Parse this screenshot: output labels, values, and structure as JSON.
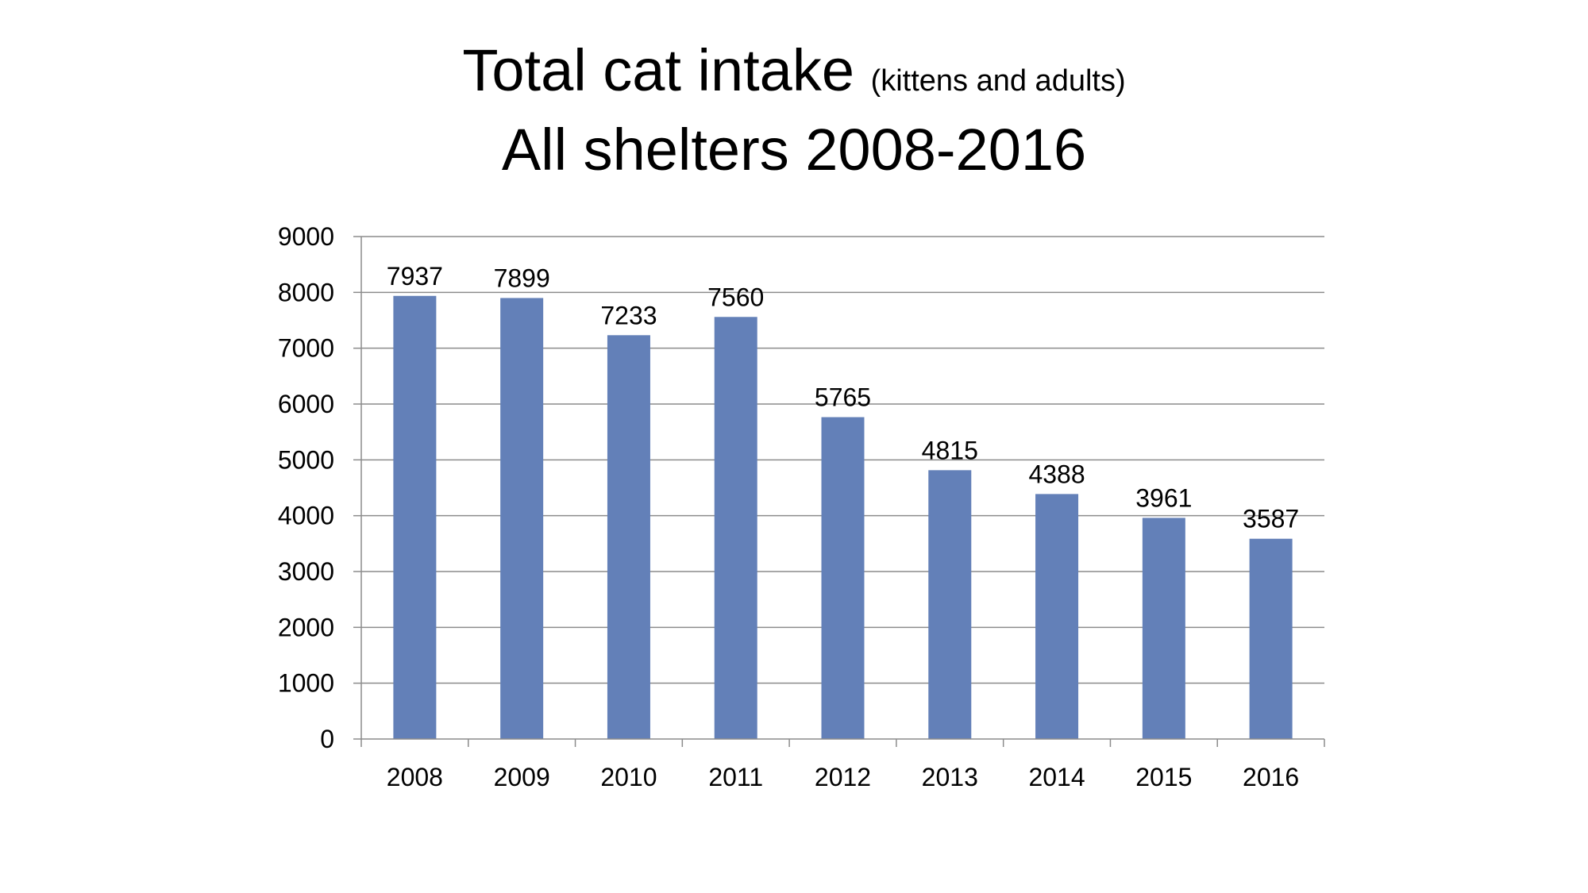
{
  "chart_data": {
    "type": "bar",
    "title": "Total cat intake",
    "title_suffix": "(kittens and adults)",
    "subtitle": "All shelters 2008-2016",
    "xlabel": "",
    "ylabel": "",
    "categories": [
      "2008",
      "2009",
      "2010",
      "2011",
      "2012",
      "2013",
      "2014",
      "2015",
      "2016"
    ],
    "values": [
      7937,
      7899,
      7233,
      7560,
      5765,
      4815,
      4388,
      3961,
      3587
    ],
    "data_labels": [
      "7937",
      "7899",
      "7233",
      "7560",
      "5765",
      "4815",
      "4388",
      "3961",
      "3587"
    ],
    "ylim": [
      0,
      9000
    ],
    "yticks": [
      0,
      1000,
      2000,
      3000,
      4000,
      5000,
      6000,
      7000,
      8000,
      9000
    ],
    "ytick_labels": [
      "0",
      "1000",
      "2000",
      "3000",
      "4000",
      "5000",
      "6000",
      "7000",
      "8000",
      "9000"
    ],
    "grid": true,
    "legend": "none",
    "bar_color": "#6380b8",
    "grid_color": "#8c8c8c",
    "axis_color": "#8c8c8c"
  }
}
